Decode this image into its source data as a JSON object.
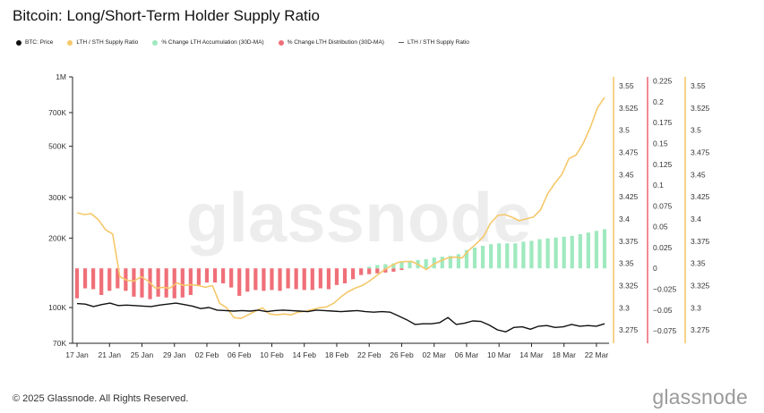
{
  "title": "Bitcoin: Long/Short-Term Holder Supply Ratio",
  "legend": [
    {
      "label": "BTC: Price",
      "color": "#111111",
      "marker": "dot"
    },
    {
      "label": "LTH / STH Supply Ratio",
      "color": "#f5c86a",
      "marker": "dot"
    },
    {
      "label": "% Change LTH Accumulation (30D-MA)",
      "color": "#9fe9bf",
      "marker": "dot"
    },
    {
      "label": "% Change LTH Distribution (30D-MA)",
      "color": "#ef6f78",
      "marker": "dot"
    },
    {
      "label": "LTH / STH Supply Ratio",
      "color": "#555555",
      "marker": "line"
    }
  ],
  "watermark": "glassnode",
  "footer": "© 2025 Glassnode. All Rights Reserved.",
  "brand": "glassnode",
  "chart_data": {
    "type": "line",
    "x_tick_labels": [
      "17 Jan",
      "21 Jan",
      "25 Jan",
      "29 Jan",
      "02 Feb",
      "06 Feb",
      "10 Feb",
      "14 Feb",
      "18 Feb",
      "22 Feb",
      "26 Feb",
      "02 Mar",
      "06 Mar",
      "10 Mar",
      "14 Mar",
      "18 Mar",
      "22 Mar"
    ],
    "x_start": "2025-01-17",
    "x_end": "2025-03-23",
    "left_axis": {
      "scale": "log",
      "ylim": [
        70000,
        1000000
      ],
      "ticks": [
        "1M",
        "700K",
        "500K",
        "300K",
        "200K",
        "100K",
        "70K"
      ],
      "tick_values": [
        1000000,
        700000,
        500000,
        300000,
        200000,
        100000,
        70000
      ]
    },
    "right_axis_1": {
      "ylim": [
        3.26,
        3.56
      ],
      "ticks": [
        "3.55",
        "3.525",
        "3.5",
        "3.475",
        "3.45",
        "3.425",
        "3.4",
        "3.375",
        "3.35",
        "3.325",
        "3.3",
        "3.275"
      ],
      "color": "#f5c86a"
    },
    "right_axis_2": {
      "ylim": [
        -0.09,
        0.23
      ],
      "ticks": [
        "0.225",
        "0.2",
        "0.175",
        "0.15",
        "0.125",
        "0.1",
        "0.075",
        "0.05",
        "0.025",
        "0",
        "−0.025",
        "−0.05",
        "−0.075"
      ],
      "color": "#ef6f78"
    },
    "right_axis_3": {
      "ylim": [
        3.26,
        3.56
      ],
      "ticks": [
        "3.55",
        "3.525",
        "3.5",
        "3.475",
        "3.45",
        "3.425",
        "3.4",
        "3.375",
        "3.35",
        "3.325",
        "3.3",
        "3.275"
      ],
      "color": "#f5c86a"
    },
    "series": [
      {
        "name": "BTC: Price",
        "axis": "left",
        "color": "#111111",
        "values": [
          104000,
          103500,
          101000,
          103000,
          104500,
          102000,
          102500,
          102000,
          101500,
          101000,
          102500,
          103500,
          104500,
          103000,
          101500,
          99000,
          100000,
          97500,
          97000,
          96500,
          97000,
          96500,
          97500,
          96000,
          97000,
          97500,
          97000,
          96500,
          96000,
          97500,
          97000,
          96500,
          96000,
          96500,
          97000,
          96000,
          95500,
          96000,
          95500,
          92000,
          88500,
          84500,
          85000,
          85000,
          86000,
          90500,
          84500,
          85500,
          87500,
          87000,
          84000,
          80000,
          78500,
          82000,
          82500,
          80500,
          83000,
          83500,
          82000,
          82500,
          84500,
          83000,
          83500,
          83000,
          85000
        ]
      },
      {
        "name": "LTH / STH Supply Ratio",
        "axis": "right_1",
        "color": "#f5c86a",
        "values": [
          3.407,
          3.405,
          3.406,
          3.399,
          3.388,
          3.383,
          3.335,
          3.331,
          3.33,
          3.335,
          3.33,
          3.322,
          3.323,
          3.322,
          3.328,
          3.325,
          3.326,
          3.325,
          3.323,
          3.325,
          3.305,
          3.3,
          3.289,
          3.288,
          3.292,
          3.296,
          3.3,
          3.293,
          3.292,
          3.293,
          3.292,
          3.295,
          3.296,
          3.298,
          3.3,
          3.301,
          3.305,
          3.312,
          3.318,
          3.322,
          3.325,
          3.33,
          3.336,
          3.342,
          3.347,
          3.351,
          3.352,
          3.352,
          3.348,
          3.343,
          3.349,
          3.353,
          3.356,
          3.357,
          3.356,
          3.365,
          3.372,
          3.38,
          3.395,
          3.404,
          3.405,
          3.402,
          3.398,
          3.4,
          3.402,
          3.41,
          3.428,
          3.44,
          3.45,
          3.468,
          3.472,
          3.485,
          3.503,
          3.525,
          3.537
        ]
      },
      {
        "name": "% Change LTH Accumulation (30D-MA)",
        "axis": "right_2",
        "color": "#9fe9bf",
        "values": [
          0.002,
          0.004,
          0.005,
          0.006,
          0.008,
          0.009,
          0.01,
          0.011,
          0.013,
          0.014,
          0.015,
          0.017,
          0.022,
          0.025,
          0.027,
          0.029,
          0.03,
          0.03,
          0.03,
          0.032,
          0.033,
          0.035,
          0.036,
          0.037,
          0.038,
          0.039,
          0.041,
          0.043,
          0.045,
          0.047
        ]
      },
      {
        "name": "% Change LTH Distribution (30D-MA)",
        "axis": "right_2",
        "color": "#ef6f78",
        "values": [
          -0.036,
          -0.024,
          -0.025,
          -0.032,
          -0.027,
          -0.024,
          -0.027,
          -0.034,
          -0.035,
          -0.037,
          -0.034,
          -0.035,
          -0.036,
          -0.035,
          -0.032,
          -0.02,
          -0.017,
          -0.017,
          -0.018,
          -0.023,
          -0.033,
          -0.028,
          -0.026,
          -0.027,
          -0.026,
          -0.027,
          -0.024,
          -0.025,
          -0.026,
          -0.026,
          -0.024,
          -0.025,
          -0.02,
          -0.018,
          -0.013,
          -0.008,
          -0.007,
          -0.006,
          -0.005,
          -0.004,
          -0.002
        ]
      }
    ],
    "grid": false
  }
}
